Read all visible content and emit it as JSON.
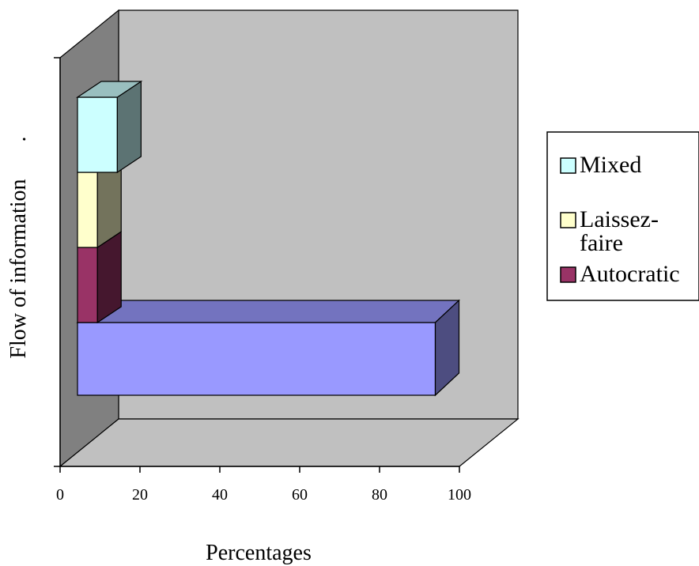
{
  "chart_data": {
    "type": "bar",
    "orientation": "horizontal",
    "three_d": true,
    "stacked": true,
    "xlabel": "Percentages",
    "ylabel": "Flow of information",
    "ylabel_suffix": ".",
    "xlim": [
      0,
      100
    ],
    "xticks": [
      "0",
      "20",
      "40",
      "60",
      "80",
      "100"
    ],
    "grid": false,
    "legend_position": "right",
    "categories": [
      "",
      ""
    ],
    "series": [
      {
        "name": "Autocratic",
        "color": "#993366",
        "values": [
          0,
          5
        ]
      },
      {
        "name": "Laissez-faire",
        "color": "#FFFFCC",
        "values": [
          0,
          5
        ]
      },
      {
        "name": "Mixed",
        "color": "#CCFFFF",
        "values": [
          0,
          8
        ]
      },
      {
        "name": "",
        "color": "#9999FF",
        "values": [
          90,
          0
        ]
      }
    ],
    "legend": [
      {
        "lines": [
          "Mixed"
        ],
        "color": "#CCFFFF"
      },
      {
        "lines": [
          "Laissez-",
          "faire"
        ],
        "color": "#FFFFCC"
      },
      {
        "lines": [
          "Autocratic"
        ],
        "color": "#993366"
      }
    ],
    "colors": {
      "back_wall": "#C0C0C0",
      "side_wall": "#808080",
      "floor": "#C0C0C0"
    }
  }
}
